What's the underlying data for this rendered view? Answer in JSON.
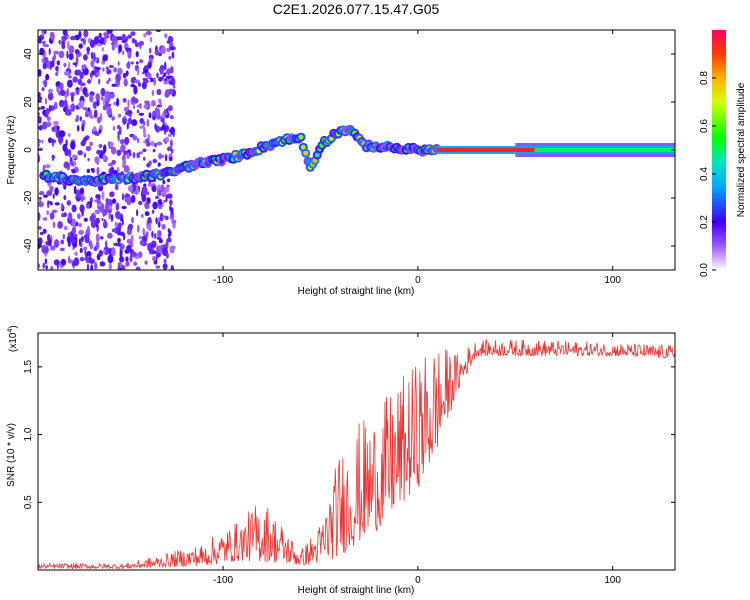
{
  "title": "C2E1.2026.077.15.47.G05",
  "chart_data": [
    {
      "type": "heatmap",
      "xlabel": "Height of straight line (km)",
      "ylabel": "Frequency (Hz)",
      "xlim": [
        -195,
        132
      ],
      "ylim": [
        -50,
        50
      ],
      "xticks": [
        -100,
        0,
        100
      ],
      "yticks": [
        -40,
        -20,
        0,
        20,
        40
      ],
      "colorbar": {
        "label": "Normalized spectral amplitude",
        "range": [
          0,
          1
        ],
        "ticks": [
          "0.0",
          "0.2",
          "0.4",
          "0.6",
          "0.8"
        ]
      },
      "ridge": [
        {
          "x": -190,
          "freq": -11
        },
        {
          "x": -170,
          "freq": -13
        },
        {
          "x": -150,
          "freq": -12
        },
        {
          "x": -130,
          "freq": -10
        },
        {
          "x": -115,
          "freq": -6
        },
        {
          "x": -100,
          "freq": -4
        },
        {
          "x": -90,
          "freq": -2
        },
        {
          "x": -80,
          "freq": 1
        },
        {
          "x": -70,
          "freq": 4
        },
        {
          "x": -60,
          "freq": 5
        },
        {
          "x": -55,
          "freq": -8
        },
        {
          "x": -50,
          "freq": 2
        },
        {
          "x": -42,
          "freq": 7
        },
        {
          "x": -35,
          "freq": 9
        },
        {
          "x": -28,
          "freq": 2
        },
        {
          "x": -15,
          "freq": 1
        },
        {
          "x": 0,
          "freq": 0
        },
        {
          "x": 20,
          "freq": 0
        },
        {
          "x": 60,
          "freq": 0
        },
        {
          "x": 100,
          "freq": 0
        },
        {
          "x": 130,
          "freq": 0
        }
      ]
    },
    {
      "type": "line",
      "xlabel": "Height of straight line (km)",
      "ylabel": "SNR (10 * v/v)",
      "y_multiplier": "(x10",
      "y_multiplier_exp": "4",
      "y_multiplier_close": ")",
      "xlim": [
        -195,
        132
      ],
      "ylim": [
        0,
        1.75
      ],
      "xticks": [
        -100,
        0,
        100
      ],
      "yticks": [
        0.5,
        1.0,
        1.5
      ],
      "ytick_labels": [
        "0.5",
        "1.0",
        "1.5"
      ],
      "color": "#ee3333",
      "envelope": [
        {
          "x": -195,
          "low": 0.01,
          "high": 0.05
        },
        {
          "x": -150,
          "low": 0.01,
          "high": 0.05
        },
        {
          "x": -130,
          "low": 0.02,
          "high": 0.12
        },
        {
          "x": -110,
          "low": 0.03,
          "high": 0.2
        },
        {
          "x": -100,
          "low": 0.05,
          "high": 0.3
        },
        {
          "x": -90,
          "low": 0.07,
          "high": 0.38
        },
        {
          "x": -80,
          "low": 0.06,
          "high": 0.55
        },
        {
          "x": -70,
          "low": 0.05,
          "high": 0.35
        },
        {
          "x": -60,
          "low": 0.03,
          "high": 0.15
        },
        {
          "x": -50,
          "low": 0.05,
          "high": 0.35
        },
        {
          "x": -40,
          "low": 0.1,
          "high": 0.9
        },
        {
          "x": -30,
          "low": 0.2,
          "high": 1.1
        },
        {
          "x": -20,
          "low": 0.3,
          "high": 1.2
        },
        {
          "x": -10,
          "low": 0.45,
          "high": 1.4
        },
        {
          "x": 0,
          "low": 0.6,
          "high": 1.55
        },
        {
          "x": 8,
          "low": 0.8,
          "high": 1.7
        },
        {
          "x": 20,
          "low": 1.3,
          "high": 1.6
        },
        {
          "x": 30,
          "low": 1.58,
          "high": 1.7
        },
        {
          "x": 60,
          "low": 1.58,
          "high": 1.7
        },
        {
          "x": 100,
          "low": 1.58,
          "high": 1.68
        },
        {
          "x": 132,
          "low": 1.56,
          "high": 1.66
        }
      ]
    }
  ]
}
